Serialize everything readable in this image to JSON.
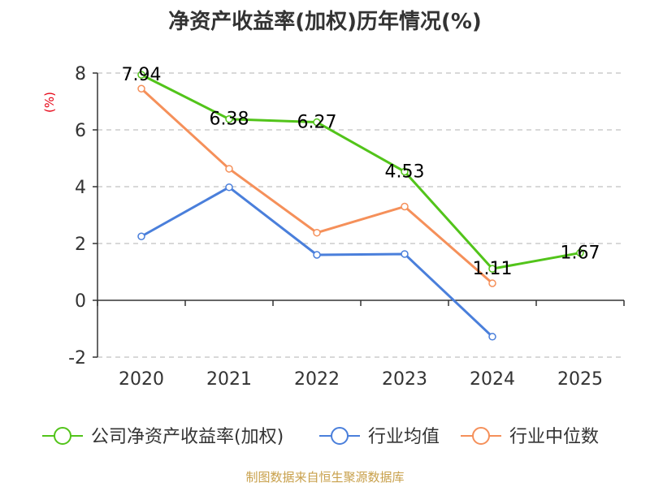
{
  "chart_data": {
    "type": "line",
    "title": "净资产收益率(加权)历年情况(%)",
    "ylabel": "(%)",
    "xlabel": "",
    "categories": [
      "2020",
      "2021",
      "2022",
      "2023",
      "2024",
      "2025"
    ],
    "ylim": [
      -2,
      8
    ],
    "yticks": [
      -2,
      0,
      2,
      4,
      6,
      8
    ],
    "grid": true,
    "legend_position": "bottom",
    "series": [
      {
        "name": "公司净资产收益率(加权)",
        "color": "#52c41a",
        "values": [
          7.94,
          6.38,
          6.27,
          4.53,
          1.11,
          1.67
        ],
        "labels": [
          "7.94",
          "6.38",
          "6.27",
          "4.53",
          "1.11",
          "1.67"
        ]
      },
      {
        "name": "行业均值",
        "color": "#4a7fdb",
        "values": [
          2.25,
          3.98,
          1.6,
          1.63,
          -1.28,
          null
        ]
      },
      {
        "name": "行业中位数",
        "color": "#f5905a",
        "values": [
          7.45,
          4.63,
          2.38,
          3.3,
          0.6,
          null
        ]
      }
    ]
  },
  "source": "制图数据来自恒生聚源数据库",
  "colors": {
    "axis": "#333333",
    "grid": "#cccccc",
    "ylabel": "#e60012",
    "source": "#c8a04b"
  }
}
